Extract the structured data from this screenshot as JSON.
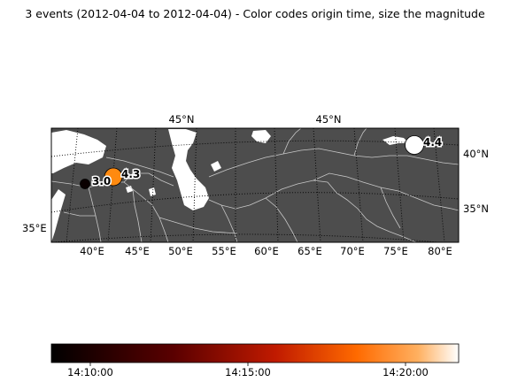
{
  "title": "3 events (2012-04-04 to 2012-04-04) - Color codes origin time, size the magnitude",
  "map": {
    "projection_note": "",
    "lon_labels": [
      "40°E",
      "45°E",
      "50°E",
      "55°E",
      "60°E",
      "65°E",
      "70°E",
      "75°E",
      "80°E"
    ],
    "lat_labels_right": [
      "40°N",
      "35°N"
    ],
    "lat_labels_left": [
      "35°E"
    ],
    "top_labels": [
      "45°N",
      "45°N"
    ],
    "colors": {
      "land": "#4d4d4d",
      "water": "#ffffff",
      "border": "#bfbfbf",
      "grid": "#000000"
    }
  },
  "chart_data": {
    "type": "scatter",
    "events": [
      {
        "magnitude": "3.0",
        "color": "#0a0000"
      },
      {
        "magnitude": "4.3",
        "color": "#ff8a10"
      },
      {
        "magnitude": "4.4",
        "color": "#ffffff"
      }
    ],
    "colorbar": {
      "ticks": [
        "14:10:00",
        "14:15:00",
        "14:20:00"
      ],
      "colormap": "gist_heat"
    }
  }
}
